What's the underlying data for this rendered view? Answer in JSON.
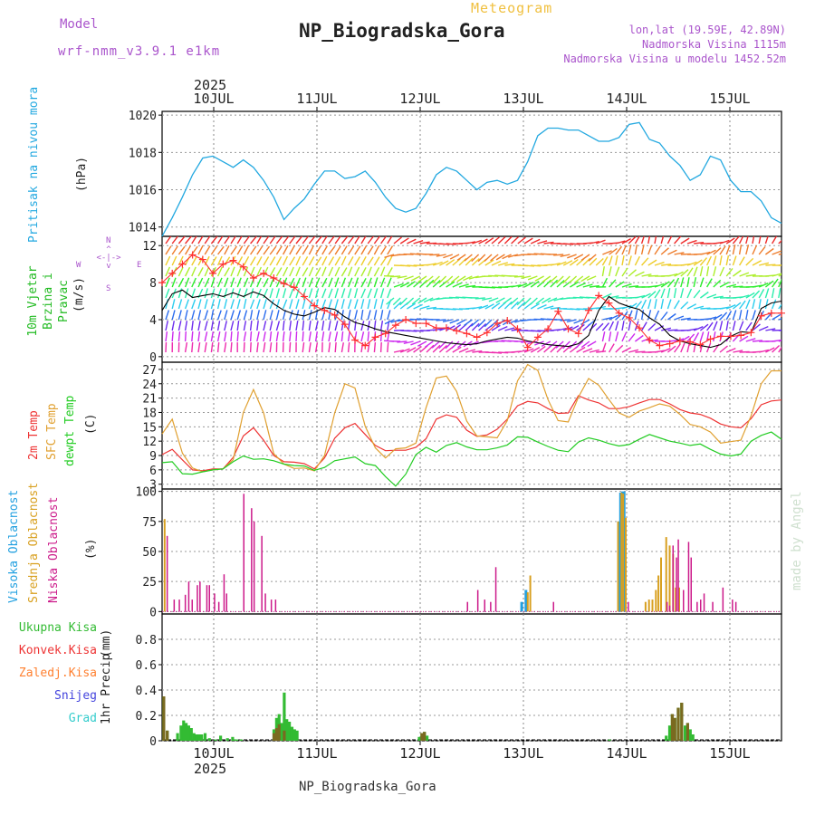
{
  "header": {
    "model_label": "Model",
    "model_name": "wrf-nmm_v3.9.1 e1km",
    "product": "Meteogram",
    "title": "NP_Biogradska_Gora",
    "lonlat": "lon,lat (19.59E, 42.89N)",
    "elevation": "Nadmorska Visina 1115m",
    "model_elevation": "Nadmorska Visina u modelu 1452.52m",
    "footer": "NP_Biogradska_Gora",
    "credit": "made by Angel"
  },
  "colors": {
    "pressure": "#22a8e0",
    "wind_speed": "#000000",
    "gust": "#ff3030",
    "t2m": "#ee3333",
    "sfc": "#e0a030",
    "dewp": "#22cc22",
    "high_cloud": "#22a0e0",
    "mid_cloud": "#d8a020",
    "low_cloud": "#cc1a8a",
    "total_precip": "#33bb33",
    "conv_precip": "#ee3333",
    "frozen_precip": "#ff8030",
    "snow": "#4444dd",
    "hail": "#33cccc"
  },
  "chart_data": [
    {
      "type": "line",
      "id": "pressure",
      "ylabel": "Pritisak na nivou mora",
      "unit": "(hPa)",
      "x_start": "2025-07-09 12:00",
      "x_end": "2025-07-15 12:00",
      "x_ticks": [
        "10JUL",
        "11JUL",
        "12JUL",
        "13JUL",
        "14JUL",
        "15JUL"
      ],
      "year_label": "2025",
      "ylim": [
        1013.5,
        1020.2
      ],
      "yticks": [
        1014,
        1016,
        1018,
        1020
      ],
      "grid": true,
      "series": [
        {
          "values": [
            1013.5,
            1014.5,
            1015.6,
            1016.8,
            1017.7,
            1017.8,
            1017.5,
            1017.2,
            1017.6,
            1017.2,
            1016.5,
            1015.6,
            1014.4,
            1015.0,
            1015.5,
            1016.3,
            1017.0,
            1017.0,
            1016.6,
            1016.7,
            1017.0,
            1016.4,
            1015.6,
            1015.0,
            1014.8,
            1015.0,
            1015.8,
            1016.8,
            1017.2,
            1017.0,
            1016.5,
            1016.0,
            1016.4,
            1016.5,
            1016.3,
            1016.5,
            1017.5,
            1018.9,
            1019.3,
            1019.3,
            1019.2,
            1019.2,
            1018.9,
            1018.6,
            1018.6,
            1018.8,
            1019.5,
            1019.6,
            1018.7,
            1018.5,
            1017.8,
            1017.3,
            1016.5,
            1016.8,
            1017.8,
            1017.6,
            1016.5,
            1015.9,
            1015.9,
            1015.4,
            1014.5,
            1014.2
          ]
        }
      ]
    },
    {
      "type": "line",
      "id": "wind",
      "ylabel": "10m Vjetar Brzina i Pravac",
      "unit": "(m/s)",
      "compass": [
        "N",
        "S",
        "W",
        "E"
      ],
      "ylim": [
        -0.6,
        13.0
      ],
      "yticks": [
        0,
        4,
        8,
        12
      ],
      "grid": true,
      "series": [
        {
          "name": "speed",
          "values": [
            5.0,
            6.8,
            7.2,
            6.4,
            6.6,
            6.8,
            6.5,
            6.9,
            6.5,
            7.0,
            6.6,
            5.7,
            5.0,
            4.6,
            4.4,
            4.8,
            5.3,
            5.1,
            4.3,
            3.7,
            3.4,
            3.0,
            2.7,
            2.5,
            2.3,
            2.1,
            1.9,
            1.7,
            1.5,
            1.4,
            1.3,
            1.4,
            1.7,
            1.9,
            2.1,
            2.0,
            1.7,
            1.5,
            1.3,
            1.2,
            1.1,
            1.4,
            2.3,
            5.0,
            6.5,
            5.8,
            5.4,
            5.1,
            4.2,
            3.5,
            2.3,
            1.7,
            1.4,
            1.2,
            1.0,
            1.3,
            2.2,
            2.7,
            2.6,
            5.2,
            5.8,
            6.0
          ]
        },
        {
          "name": "gust",
          "values": [
            8.0,
            9.0,
            10.0,
            11.0,
            10.5,
            9.0,
            10.0,
            10.4,
            9.7,
            8.5,
            9.0,
            8.5,
            7.9,
            7.5,
            6.5,
            5.5,
            5.0,
            4.5,
            3.5,
            1.8,
            1.2,
            2.1,
            2.5,
            3.4,
            4.0,
            3.6,
            3.6,
            3.1,
            3.1,
            2.8,
            2.5,
            2.1,
            2.6,
            3.6,
            3.9,
            3.0,
            1.0,
            2.1,
            3.0,
            4.9,
            3.0,
            2.5,
            5.0,
            6.6,
            5.8,
            4.7,
            4.2,
            3.1,
            1.8,
            1.2,
            1.4,
            1.7,
            1.6,
            1.3,
            1.9,
            2.2,
            2.2,
            2.3,
            2.6,
            4.4,
            4.7,
            4.7
          ]
        }
      ]
    },
    {
      "type": "line",
      "id": "temperature",
      "ylabel": [
        "2m Temp",
        "SFC Temp",
        "dewpt Temp"
      ],
      "unit": "(C)",
      "ylim": [
        2.0,
        28.5
      ],
      "yticks": [
        3,
        6,
        9,
        12,
        15,
        18,
        21,
        24,
        27
      ],
      "grid": true,
      "series": [
        {
          "name": "2m Temp",
          "values": [
            9.2,
            10.3,
            8.1,
            6.0,
            5.8,
            6.2,
            6.2,
            8.6,
            13.1,
            14.8,
            12.2,
            9.0,
            7.7,
            7.6,
            7.3,
            6.2,
            8.5,
            12.6,
            14.8,
            15.7,
            13.4,
            11.1,
            10.0,
            10.1,
            10.1,
            10.7,
            12.5,
            16.6,
            17.5,
            17.0,
            14.3,
            13.0,
            13.3,
            14.5,
            16.6,
            19.4,
            20.3,
            20.0,
            18.8,
            17.8,
            17.9,
            21.5,
            20.6,
            20.0,
            18.8,
            18.8,
            19.2,
            20.0,
            20.7,
            20.7,
            19.8,
            18.6,
            17.9,
            17.6,
            16.8,
            15.6,
            15.0,
            14.8,
            16.7,
            19.6,
            20.4,
            20.6
          ]
        },
        {
          "name": "SFC Temp",
          "values": [
            13.5,
            16.6,
            9.5,
            6.4,
            5.6,
            6.0,
            6.2,
            8.1,
            18.0,
            22.8,
            17.9,
            9.4,
            7.2,
            6.3,
            6.4,
            5.8,
            9.0,
            17.9,
            24.0,
            23.1,
            15.1,
            10.6,
            8.5,
            10.4,
            10.6,
            11.6,
            19.0,
            25.2,
            25.6,
            22.4,
            16.2,
            13.1,
            12.9,
            12.7,
            16.3,
            24.6,
            28.0,
            26.8,
            20.7,
            16.3,
            16.0,
            21.2,
            25.1,
            23.7,
            20.7,
            17.9,
            17.0,
            18.3,
            19.0,
            19.8,
            19.3,
            17.6,
            15.5,
            15.0,
            13.9,
            11.6,
            11.9,
            12.2,
            17.3,
            24.0,
            26.7,
            26.7
          ]
        },
        {
          "name": "dewpt Temp",
          "values": [
            7.5,
            7.7,
            5.2,
            5.1,
            5.6,
            6.0,
            6.2,
            7.7,
            8.9,
            8.2,
            8.3,
            7.9,
            7.2,
            6.9,
            6.8,
            5.9,
            6.5,
            7.9,
            8.3,
            8.7,
            7.3,
            6.9,
            4.6,
            2.6,
            5.1,
            9.2,
            10.7,
            9.7,
            11.1,
            11.7,
            10.8,
            10.2,
            10.2,
            10.6,
            11.2,
            12.9,
            12.8,
            11.8,
            10.9,
            10.1,
            9.8,
            11.8,
            12.7,
            12.2,
            11.5,
            11.0,
            11.3,
            12.4,
            13.4,
            12.7,
            12.0,
            11.6,
            11.1,
            11.4,
            10.3,
            9.3,
            8.9,
            9.3,
            12.0,
            13.2,
            13.9,
            12.4
          ]
        }
      ]
    },
    {
      "type": "bar",
      "id": "cloud",
      "ylabel": [
        "Visoka Oblacnost",
        "Srednja Oblacnost",
        "Niska Oblacnost"
      ],
      "unit": "(%)",
      "ylim": [
        -2,
        102
      ],
      "yticks": [
        0,
        25,
        50,
        75,
        100
      ],
      "grid": true,
      "series": [
        {
          "name": "Visoka Oblacnost",
          "points": [
            [
              41.8,
              8
            ],
            [
              42.3,
              18
            ],
            [
              53.1,
              75
            ],
            [
              53.3,
              99
            ],
            [
              53.5,
              100
            ],
            [
              53.7,
              100
            ]
          ]
        },
        {
          "name": "Srednja Oblacnost",
          "points": [
            [
              0.3,
              77
            ],
            [
              42.5,
              16
            ],
            [
              42.8,
              30
            ],
            [
              53.0,
              75
            ],
            [
              53.4,
              99
            ],
            [
              53.6,
              98
            ],
            [
              53.9,
              78
            ],
            [
              56.2,
              8
            ],
            [
              56.6,
              10
            ],
            [
              57.0,
              10
            ],
            [
              57.4,
              18
            ],
            [
              57.7,
              30
            ],
            [
              58.0,
              45
            ],
            [
              58.6,
              62
            ],
            [
              59.0,
              55
            ],
            [
              59.4,
              48
            ],
            [
              59.7,
              20
            ],
            [
              60.1,
              20
            ]
          ]
        },
        {
          "name": "Niska Oblacnost",
          "points": [
            [
              0.6,
              63
            ],
            [
              1.4,
              10
            ],
            [
              2.0,
              10
            ],
            [
              2.7,
              14
            ],
            [
              3.1,
              25
            ],
            [
              3.5,
              10
            ],
            [
              4.1,
              22
            ],
            [
              4.4,
              25
            ],
            [
              5.2,
              22
            ],
            [
              5.5,
              22
            ],
            [
              6.1,
              15
            ],
            [
              6.6,
              8
            ],
            [
              7.2,
              31
            ],
            [
              7.5,
              15
            ],
            [
              9.5,
              98
            ],
            [
              10.4,
              86
            ],
            [
              10.7,
              75
            ],
            [
              11.6,
              63
            ],
            [
              12.0,
              15
            ],
            [
              12.7,
              10
            ],
            [
              13.2,
              10
            ],
            [
              35.5,
              8
            ],
            [
              36.7,
              18
            ],
            [
              37.5,
              10
            ],
            [
              38.2,
              8
            ],
            [
              38.8,
              37
            ],
            [
              45.5,
              8
            ],
            [
              54.2,
              8
            ],
            [
              58.7,
              8
            ],
            [
              59.0,
              5
            ],
            [
              59.4,
              55
            ],
            [
              59.8,
              45
            ],
            [
              60.0,
              60
            ],
            [
              60.6,
              18
            ],
            [
              61.2,
              58
            ],
            [
              61.5,
              45
            ],
            [
              62.2,
              8
            ],
            [
              62.6,
              10
            ],
            [
              63.0,
              15
            ],
            [
              64.0,
              8
            ],
            [
              65.2,
              20
            ],
            [
              66.3,
              10
            ],
            [
              66.7,
              8
            ]
          ]
        }
      ]
    },
    {
      "type": "bar",
      "id": "precip",
      "ylabel": "1hr Precip",
      "unit": "(mm)",
      "legend": [
        "Ukupna Kisa",
        "Konvek.Kisa",
        "Zaledj.Kisa",
        "Snijeg",
        "Grad"
      ],
      "ylim": [
        0,
        1.0
      ],
      "yticks": [
        0,
        0.2,
        0.4,
        0.6,
        0.8
      ],
      "grid": true,
      "series": [
        {
          "name": "Ukupna Kisa",
          "points": [
            [
              0.2,
              0.35
            ],
            [
              0.6,
              0.08
            ],
            [
              1.8,
              0.06
            ],
            [
              2.2,
              0.12
            ],
            [
              2.5,
              0.16
            ],
            [
              2.8,
              0.14
            ],
            [
              3.1,
              0.12
            ],
            [
              3.4,
              0.1
            ],
            [
              3.7,
              0.06
            ],
            [
              4.0,
              0.05
            ],
            [
              4.3,
              0.05
            ],
            [
              4.6,
              0.05
            ],
            [
              5.0,
              0.06
            ],
            [
              5.5,
              0.02
            ],
            [
              6.2,
              0.01
            ],
            [
              6.8,
              0.04
            ],
            [
              7.6,
              0.02
            ],
            [
              8.2,
              0.03
            ],
            [
              8.5,
              0.01
            ],
            [
              8.7,
              0.01
            ],
            [
              9.2,
              0.01
            ],
            [
              13.0,
              0.09
            ],
            [
              13.3,
              0.18
            ],
            [
              13.6,
              0.21
            ],
            [
              13.9,
              0.14
            ],
            [
              14.2,
              0.38
            ],
            [
              14.5,
              0.17
            ],
            [
              14.8,
              0.15
            ],
            [
              15.1,
              0.11
            ],
            [
              15.4,
              0.09
            ],
            [
              15.7,
              0.08
            ],
            [
              29.9,
              0.03
            ],
            [
              30.2,
              0.06
            ],
            [
              30.5,
              0.07
            ],
            [
              30.8,
              0.04
            ],
            [
              52.0,
              0.01
            ],
            [
              58.6,
              0.04
            ],
            [
              59.0,
              0.12
            ],
            [
              59.3,
              0.21
            ],
            [
              59.6,
              0.18
            ],
            [
              60.0,
              0.26
            ],
            [
              60.4,
              0.3
            ],
            [
              60.8,
              0.12
            ],
            [
              61.1,
              0.14
            ],
            [
              61.4,
              0.09
            ],
            [
              61.7,
              0.05
            ]
          ]
        },
        {
          "name": "Konvek.Kisa",
          "points": [
            [
              0.2,
              0.35
            ],
            [
              0.6,
              0.08
            ],
            [
              13.0,
              0.06
            ],
            [
              13.3,
              0.1
            ],
            [
              13.6,
              0.13
            ],
            [
              14.2,
              0.08
            ],
            [
              30.2,
              0.06
            ],
            [
              30.5,
              0.07
            ],
            [
              59.3,
              0.21
            ],
            [
              59.6,
              0.18
            ],
            [
              60.0,
              0.26
            ],
            [
              60.4,
              0.3
            ],
            [
              61.1,
              0.14
            ]
          ]
        }
      ]
    }
  ]
}
